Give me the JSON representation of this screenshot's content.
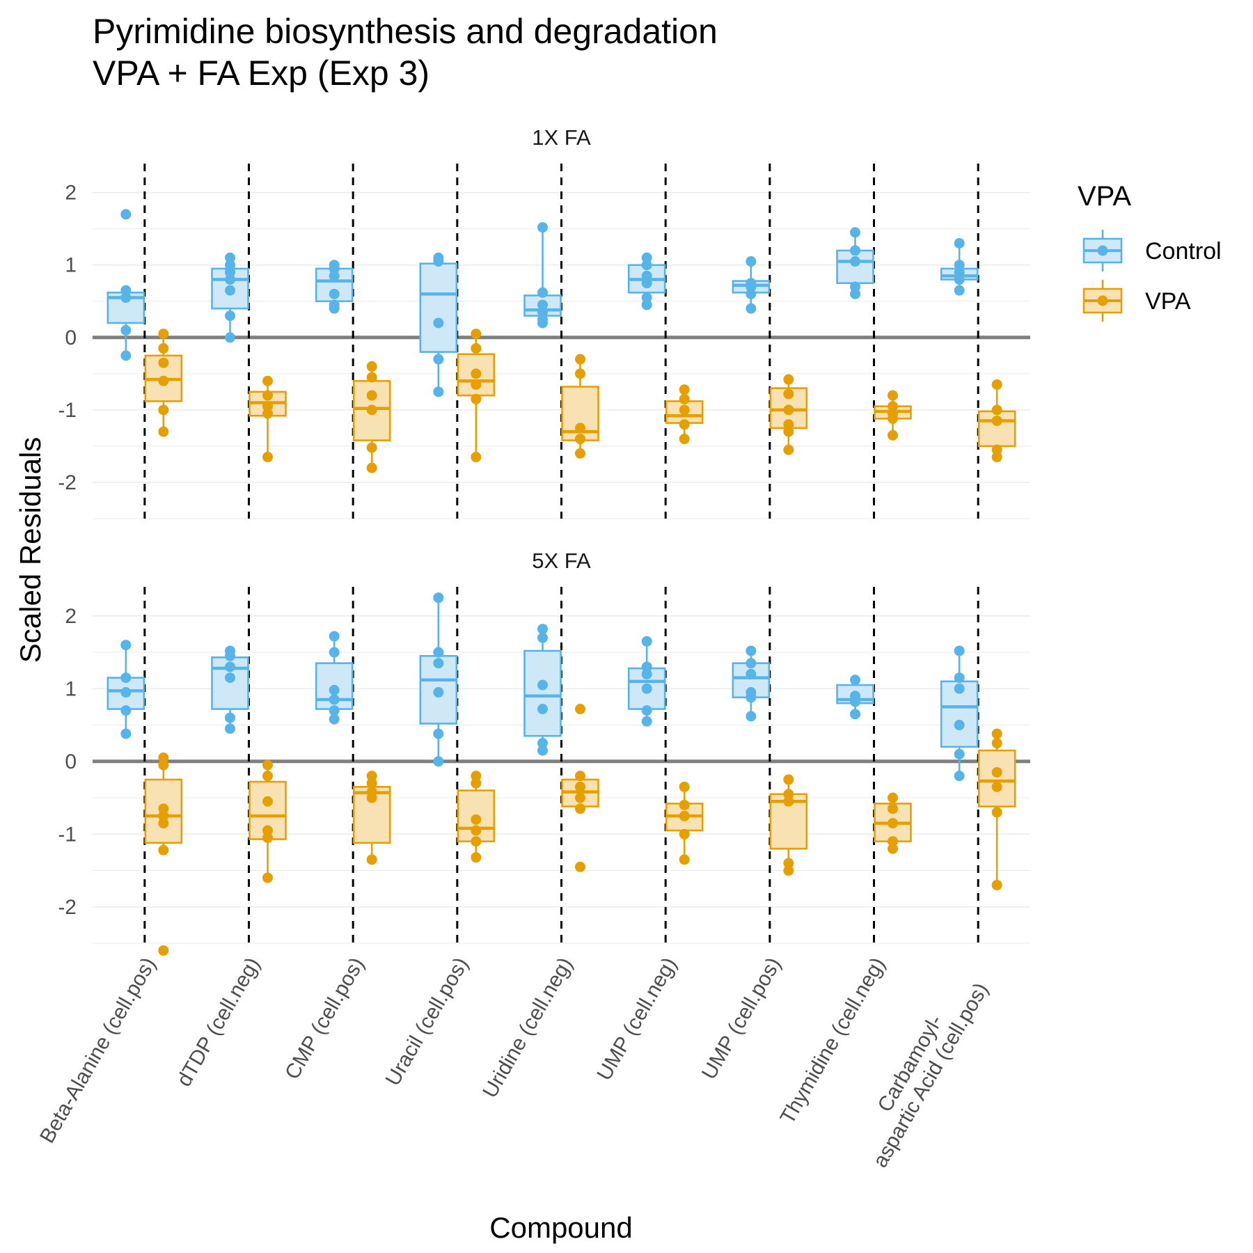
{
  "chart_data": {
    "type": "boxplot",
    "title_lines": [
      "Pyrimidine biosynthesis and degradation",
      "VPA + FA Exp (Exp 3)"
    ],
    "xlabel": "Compound",
    "ylabel": "Scaled Residuals",
    "ylim": [
      -2.5,
      2.4
    ],
    "yticks": [
      -2,
      -1,
      0,
      1,
      2
    ],
    "ytick_labels": [
      "-2",
      "-1",
      "0",
      "1",
      "2"
    ],
    "reference_line_y": 0,
    "grid": true,
    "legend": {
      "title": "VPA",
      "position": "right",
      "entries": [
        {
          "key": "control",
          "label": "Control",
          "color": "#56B4E9",
          "fill": "#cfe8f7"
        },
        {
          "key": "vpa",
          "label": "VPA",
          "color": "#E69F00",
          "fill": "#f8e2b3"
        }
      ]
    },
    "categories": [
      [
        "Beta-Alanine (cell.pos)"
      ],
      [
        "dTDP (cell.neg)"
      ],
      [
        "CMP (cell.pos)"
      ],
      [
        "Uracil (cell.pos)"
      ],
      [
        "Uridine (cell.neg)"
      ],
      [
        "UMP (cell.neg)"
      ],
      [
        "UMP (cell.pos)"
      ],
      [
        "Thymidine (cell.neg)"
      ],
      [
        "Carbamoyl-",
        "aspartic Acid (cell.pos)"
      ]
    ],
    "panels": [
      {
        "label": "1X FA",
        "control": [
          {
            "min": -0.25,
            "q1": 0.2,
            "median": 0.55,
            "q3": 0.62,
            "max": 0.65,
            "points": [
              1.7,
              0.65,
              0.55,
              0.1,
              -0.25
            ]
          },
          {
            "min": 0.0,
            "q1": 0.4,
            "median": 0.8,
            "q3": 0.95,
            "max": 1.1,
            "points": [
              1.1,
              1.0,
              0.9,
              0.8,
              0.65,
              0.3,
              0.0
            ]
          },
          {
            "min": 0.4,
            "q1": 0.5,
            "median": 0.78,
            "q3": 0.95,
            "max": 1.0,
            "points": [
              1.0,
              0.95,
              0.85,
              0.6,
              0.45,
              0.4
            ]
          },
          {
            "min": -0.75,
            "q1": -0.2,
            "median": 0.6,
            "q3": 1.02,
            "max": 1.1,
            "points": [
              1.1,
              1.05,
              0.2,
              -0.3,
              -0.75
            ]
          },
          {
            "min": 0.2,
            "q1": 0.3,
            "median": 0.38,
            "q3": 0.58,
            "max": 1.52,
            "points": [
              1.52,
              0.62,
              0.45,
              0.35,
              0.25,
              0.2
            ]
          },
          {
            "min": 0.45,
            "q1": 0.62,
            "median": 0.8,
            "q3": 1.0,
            "max": 1.1,
            "points": [
              1.1,
              1.0,
              0.85,
              0.75,
              0.55,
              0.45
            ]
          },
          {
            "min": 0.4,
            "q1": 0.62,
            "median": 0.72,
            "q3": 0.78,
            "max": 1.05,
            "points": [
              1.05,
              0.75,
              0.7,
              0.6,
              0.4
            ]
          },
          {
            "min": 0.6,
            "q1": 0.75,
            "median": 1.05,
            "q3": 1.2,
            "max": 1.45,
            "points": [
              1.45,
              1.2,
              1.05,
              0.7,
              0.6
            ]
          },
          {
            "min": 0.65,
            "q1": 0.8,
            "median": 0.85,
            "q3": 0.95,
            "max": 1.3,
            "points": [
              1.3,
              1.0,
              0.9,
              0.8,
              0.65
            ]
          }
        ],
        "vpa": [
          {
            "min": -1.3,
            "q1": -0.88,
            "median": -0.58,
            "q3": -0.25,
            "max": 0.05,
            "points": [
              0.05,
              -0.15,
              -0.35,
              -0.6,
              -1.0,
              -1.3
            ]
          },
          {
            "min": -1.65,
            "q1": -1.08,
            "median": -0.9,
            "q3": -0.75,
            "max": -0.6,
            "points": [
              -0.6,
              -0.8,
              -0.95,
              -1.05,
              -1.65
            ]
          },
          {
            "min": -1.8,
            "q1": -1.42,
            "median": -0.98,
            "q3": -0.6,
            "max": -0.4,
            "points": [
              -0.4,
              -0.55,
              -0.8,
              -1.0,
              -1.52,
              -1.8
            ]
          },
          {
            "min": -1.65,
            "q1": -0.8,
            "median": -0.6,
            "q3": -0.23,
            "max": 0.05,
            "points": [
              0.05,
              -0.15,
              -0.5,
              -0.65,
              -0.85,
              -1.65
            ]
          },
          {
            "min": -1.6,
            "q1": -1.42,
            "median": -1.3,
            "q3": -0.68,
            "max": -0.3,
            "points": [
              -0.3,
              -0.5,
              -1.25,
              -1.4,
              -1.6
            ]
          },
          {
            "min": -1.4,
            "q1": -1.18,
            "median": -1.08,
            "q3": -0.88,
            "max": -0.72,
            "points": [
              -0.72,
              -0.85,
              -1.0,
              -1.2,
              -1.4
            ]
          },
          {
            "min": -1.55,
            "q1": -1.25,
            "median": -1.0,
            "q3": -0.7,
            "max": -0.58,
            "points": [
              -0.58,
              -0.78,
              -1.0,
              -1.2,
              -1.3,
              -1.55
            ]
          },
          {
            "min": -1.35,
            "q1": -1.12,
            "median": -1.02,
            "q3": -0.95,
            "max": -0.8,
            "points": [
              -0.8,
              -0.95,
              -1.05,
              -1.12,
              -1.35
            ]
          },
          {
            "min": -1.65,
            "q1": -1.5,
            "median": -1.15,
            "q3": -1.02,
            "max": -0.65,
            "points": [
              -0.65,
              -1.0,
              -1.15,
              -1.55,
              -1.65
            ]
          }
        ]
      },
      {
        "label": "5X FA",
        "control": [
          {
            "min": 0.38,
            "q1": 0.72,
            "median": 0.97,
            "q3": 1.15,
            "max": 1.6,
            "points": [
              1.6,
              1.15,
              0.95,
              0.7,
              0.38
            ]
          },
          {
            "min": 0.45,
            "q1": 0.72,
            "median": 1.28,
            "q3": 1.43,
            "max": 1.52,
            "points": [
              1.52,
              1.45,
              1.3,
              1.15,
              0.6,
              0.45
            ]
          },
          {
            "min": 0.58,
            "q1": 0.72,
            "median": 0.85,
            "q3": 1.35,
            "max": 1.72,
            "points": [
              1.72,
              1.5,
              0.98,
              0.85,
              0.7,
              0.58
            ]
          },
          {
            "min": 0.0,
            "q1": 0.52,
            "median": 1.12,
            "q3": 1.45,
            "max": 2.25,
            "points": [
              2.25,
              1.5,
              1.35,
              0.95,
              0.38,
              0.0
            ]
          },
          {
            "min": 0.15,
            "q1": 0.35,
            "median": 0.9,
            "q3": 1.52,
            "max": 1.82,
            "points": [
              1.82,
              1.7,
              1.05,
              0.72,
              0.25,
              0.15
            ]
          },
          {
            "min": 0.55,
            "q1": 0.72,
            "median": 1.1,
            "q3": 1.28,
            "max": 1.65,
            "points": [
              1.65,
              1.3,
              1.2,
              1.0,
              0.7,
              0.55
            ]
          },
          {
            "min": 0.62,
            "q1": 0.88,
            "median": 1.15,
            "q3": 1.35,
            "max": 1.52,
            "points": [
              1.52,
              1.35,
              1.2,
              0.95,
              0.88,
              0.62
            ]
          },
          {
            "min": 0.65,
            "q1": 0.8,
            "median": 0.85,
            "q3": 1.05,
            "max": 1.12,
            "points": [
              1.12,
              0.9,
              0.82,
              0.65
            ]
          },
          {
            "min": -0.2,
            "q1": 0.2,
            "median": 0.75,
            "q3": 1.1,
            "max": 1.52,
            "points": [
              1.52,
              1.15,
              1.0,
              0.5,
              0.1,
              -0.2
            ]
          }
        ],
        "vpa": [
          {
            "min": -1.22,
            "q1": -1.12,
            "median": -0.75,
            "q3": -0.25,
            "max": 0.05,
            "points": [
              0.05,
              -0.05,
              -0.65,
              -0.75,
              -0.85,
              -1.22,
              -2.6
            ]
          },
          {
            "min": -1.6,
            "q1": -1.07,
            "median": -0.75,
            "q3": -0.28,
            "max": -0.05,
            "points": [
              -0.05,
              -0.2,
              -0.55,
              -0.95,
              -1.05,
              -1.6
            ]
          },
          {
            "min": -1.35,
            "q1": -1.12,
            "median": -0.43,
            "q3": -0.35,
            "max": -0.2,
            "points": [
              -0.2,
              -0.3,
              -0.42,
              -0.5,
              -1.35
            ]
          },
          {
            "min": -1.32,
            "q1": -1.1,
            "median": -0.92,
            "q3": -0.4,
            "max": -0.2,
            "points": [
              -0.2,
              -0.3,
              -0.8,
              -0.95,
              -1.1,
              -1.32
            ]
          },
          {
            "min": -0.65,
            "q1": -0.62,
            "median": -0.42,
            "q3": -0.25,
            "max": -0.2,
            "points": [
              0.72,
              -0.2,
              -0.35,
              -0.5,
              -0.65,
              -1.45
            ]
          },
          {
            "min": -1.35,
            "q1": -0.95,
            "median": -0.75,
            "q3": -0.58,
            "max": -0.35,
            "points": [
              -0.35,
              -0.6,
              -0.75,
              -1.0,
              -1.35
            ]
          },
          {
            "min": -1.5,
            "q1": -1.2,
            "median": -0.55,
            "q3": -0.45,
            "max": -0.25,
            "points": [
              -0.25,
              -0.45,
              -0.55,
              -1.4,
              -1.5
            ]
          },
          {
            "min": -1.2,
            "q1": -1.1,
            "median": -0.85,
            "q3": -0.58,
            "max": -0.5,
            "points": [
              -0.5,
              -0.65,
              -0.85,
              -1.1,
              -1.2
            ]
          },
          {
            "min": -1.7,
            "q1": -0.62,
            "median": -0.27,
            "q3": 0.15,
            "max": 0.38,
            "points": [
              0.38,
              0.25,
              -0.15,
              -0.35,
              -0.7,
              -1.7
            ]
          }
        ]
      }
    ]
  }
}
